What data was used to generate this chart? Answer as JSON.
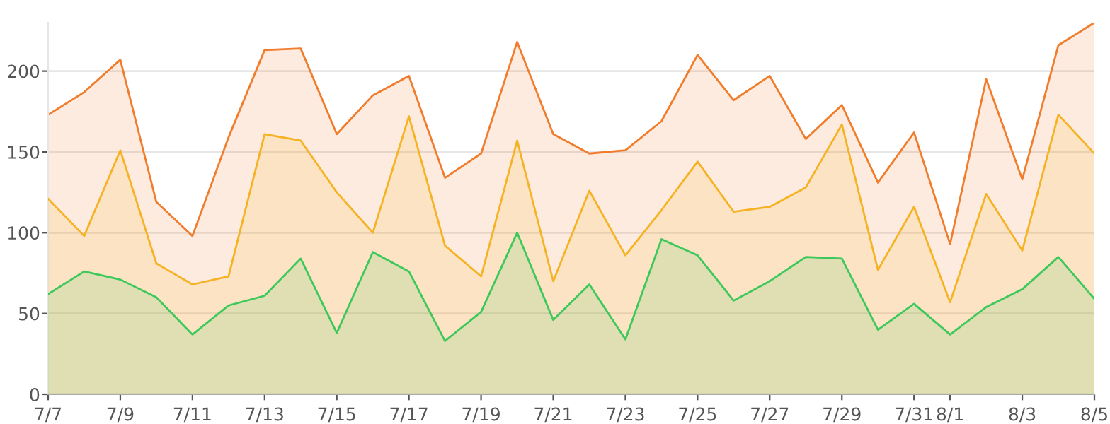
{
  "chart_data": {
    "type": "area",
    "categories": [
      "7/7",
      null,
      "7/9",
      null,
      "7/11",
      null,
      "7/13",
      null,
      "7/15",
      null,
      "7/17",
      null,
      "7/19",
      null,
      "7/21",
      null,
      "7/23",
      null,
      "7/25",
      null,
      "7/27",
      null,
      "7/29",
      null,
      "7/31",
      "8/1",
      null,
      "8/3",
      null,
      "8/5"
    ],
    "series": [
      {
        "color": "#f07c2c",
        "values": [
          173,
          187,
          207,
          119,
          98,
          159,
          213,
          214,
          161,
          185,
          197,
          134,
          149,
          218,
          161,
          149,
          151,
          169,
          210,
          182,
          197,
          158,
          179,
          131,
          162,
          93,
          195,
          133,
          216,
          230
        ]
      },
      {
        "color": "#f5b324",
        "values": [
          121,
          98,
          151,
          81,
          68,
          73,
          161,
          157,
          125,
          100,
          172,
          92,
          73,
          157,
          70,
          126,
          86,
          114,
          144,
          113,
          116,
          128,
          167,
          77,
          116,
          57,
          124,
          89,
          173,
          149
        ]
      },
      {
        "color": "#3cc85a",
        "values": [
          62,
          76,
          71,
          60,
          37,
          55,
          61,
          84,
          38,
          88,
          76,
          33,
          51,
          100,
          46,
          68,
          34,
          96,
          86,
          58,
          70,
          85,
          84,
          40,
          56,
          37,
          54,
          65,
          85,
          59
        ]
      }
    ],
    "ylim": [
      0,
      230
    ],
    "yticks": [
      0,
      50,
      100,
      150,
      200
    ],
    "grid": "y",
    "legend": false
  }
}
